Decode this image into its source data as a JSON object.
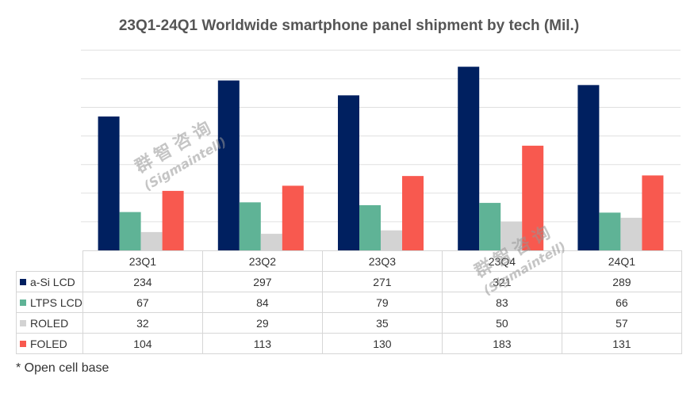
{
  "chart_data": {
    "type": "bar",
    "title": "23Q1-24Q1 Worldwide smartphone panel shipment by tech (Mil.)",
    "categories": [
      "23Q1",
      "23Q2",
      "23Q3",
      "23Q4",
      "24Q1"
    ],
    "series": [
      {
        "name": "a-Si LCD",
        "color": "#002060",
        "values": [
          234,
          297,
          271,
          321,
          289
        ]
      },
      {
        "name": "LTPS LCD",
        "color": "#5fb396",
        "values": [
          67,
          84,
          79,
          83,
          66
        ]
      },
      {
        "name": "ROLED",
        "color": "#d3d3d3",
        "values": [
          32,
          29,
          35,
          50,
          57
        ]
      },
      {
        "name": "FOLED",
        "color": "#f8594f",
        "values": [
          104,
          113,
          130,
          183,
          131
        ]
      }
    ],
    "ylim": [
      0,
      350
    ],
    "grid": true,
    "legend": "table-below"
  },
  "footnote": "* Open cell base",
  "watermark": {
    "chinese": "群智咨询",
    "english": "(Sigmaintell)"
  }
}
